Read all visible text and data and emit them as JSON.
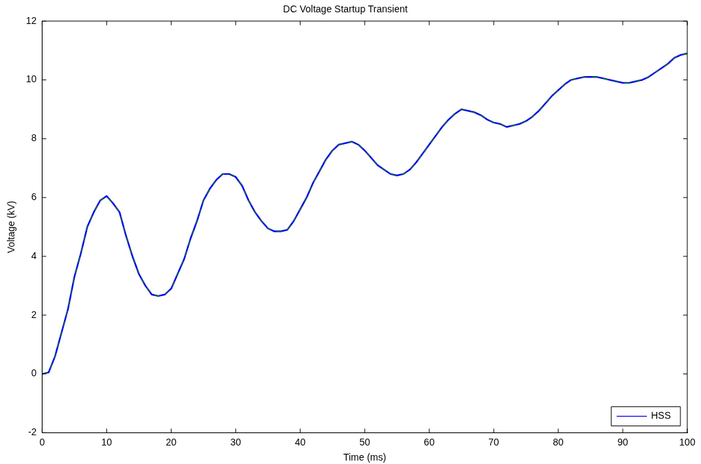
{
  "chart_data": {
    "type": "line",
    "title": "DC Voltage Startup Transient",
    "xlabel": "Time (ms)",
    "ylabel": "Voltage (kV)",
    "x": [
      0,
      1,
      2,
      3,
      4,
      5,
      6,
      7,
      8,
      9,
      10,
      11,
      12,
      13,
      14,
      15,
      16,
      17,
      18,
      19,
      20,
      21,
      22,
      23,
      24,
      25,
      26,
      27,
      28,
      29,
      30,
      31,
      32,
      33,
      34,
      35,
      36,
      37,
      38,
      39,
      40,
      41,
      42,
      43,
      44,
      45,
      46,
      47,
      48,
      49,
      50,
      51,
      52,
      53,
      54,
      55,
      56,
      57,
      58,
      59,
      60,
      61,
      62,
      63,
      64,
      65,
      66,
      67,
      68,
      69,
      70,
      71,
      72,
      73,
      74,
      75,
      76,
      77,
      78,
      79,
      80,
      81,
      82,
      83,
      84,
      85,
      86,
      87,
      88,
      89,
      90,
      91,
      92,
      93,
      94,
      95,
      96,
      97,
      98,
      99,
      100
    ],
    "series": [
      {
        "name": "HSS",
        "color": "#0000ff",
        "line_style": "solid",
        "values": [
          0,
          0.05,
          0.6,
          1.4,
          2.2,
          3.3,
          4.1,
          5.0,
          5.5,
          5.9,
          6.05,
          5.8,
          5.5,
          4.7,
          4.0,
          3.4,
          3.0,
          2.7,
          2.65,
          2.7,
          2.9,
          3.4,
          3.9,
          4.6,
          5.2,
          5.9,
          6.3,
          6.6,
          6.8,
          6.8,
          6.7,
          6.4,
          5.9,
          5.5,
          5.2,
          4.95,
          4.85,
          4.85,
          4.9,
          5.2,
          5.6,
          6.0,
          6.5,
          6.9,
          7.3,
          7.6,
          7.8,
          7.85,
          7.9,
          7.8,
          7.6,
          7.35,
          7.1,
          6.95,
          6.8,
          6.75,
          6.8,
          6.95,
          7.2,
          7.5,
          7.8,
          8.1,
          8.4,
          8.65,
          8.85,
          9.0,
          8.95,
          8.9,
          8.8,
          8.65,
          8.55,
          8.5,
          8.4,
          8.45,
          8.5,
          8.6,
          8.75,
          8.95,
          9.2,
          9.45,
          9.65,
          9.85,
          10.0,
          10.05,
          10.1,
          10.1,
          10.1,
          10.05,
          10.0,
          9.95,
          9.9,
          9.9,
          9.95,
          10.0,
          10.1,
          10.25,
          10.4,
          10.55,
          10.75,
          10.85,
          10.9
        ]
      },
      {
        "color": "#008000",
        "line_style": "dashed",
        "values": [
          0,
          0.05,
          0.6,
          1.4,
          2.2,
          3.3,
          4.1,
          5.0,
          5.5,
          5.9,
          6.05,
          5.8,
          5.5,
          4.7,
          4.0,
          3.4,
          3.0,
          2.7,
          2.65,
          2.7,
          2.9,
          3.4,
          3.9,
          4.6,
          5.2,
          5.9,
          6.3,
          6.6,
          6.8,
          6.8,
          6.7,
          6.4,
          5.9,
          5.5,
          5.2,
          4.95,
          4.85,
          4.85,
          4.9,
          5.2,
          5.6,
          6.0,
          6.5,
          6.9,
          7.3,
          7.6,
          7.8,
          7.85,
          7.9,
          7.8,
          7.6,
          7.35,
          7.1,
          6.95,
          6.8,
          6.75,
          6.8,
          6.95,
          7.2,
          7.5,
          7.8,
          8.1,
          8.4,
          8.65,
          8.85,
          9.0,
          8.95,
          8.9,
          8.8,
          8.65,
          8.55,
          8.5,
          8.4,
          8.45,
          8.5,
          8.6,
          8.75,
          8.95,
          9.2,
          9.45,
          9.65,
          9.85,
          10.0,
          10.05,
          10.1,
          10.1,
          10.1,
          10.05,
          10.0,
          9.95,
          9.9,
          9.9,
          9.95,
          10.0,
          10.1,
          10.25,
          10.4,
          10.55,
          10.75,
          10.85,
          10.9
        ]
      }
    ],
    "xlim": [
      0,
      100
    ],
    "xticks": [
      0,
      10,
      20,
      30,
      40,
      50,
      60,
      70,
      80,
      90,
      100
    ],
    "ylim": [
      -2,
      12
    ],
    "yticks": [
      -2,
      0,
      2,
      4,
      6,
      8,
      10,
      12
    ],
    "legend": "bottom right",
    "marker": "none"
  }
}
